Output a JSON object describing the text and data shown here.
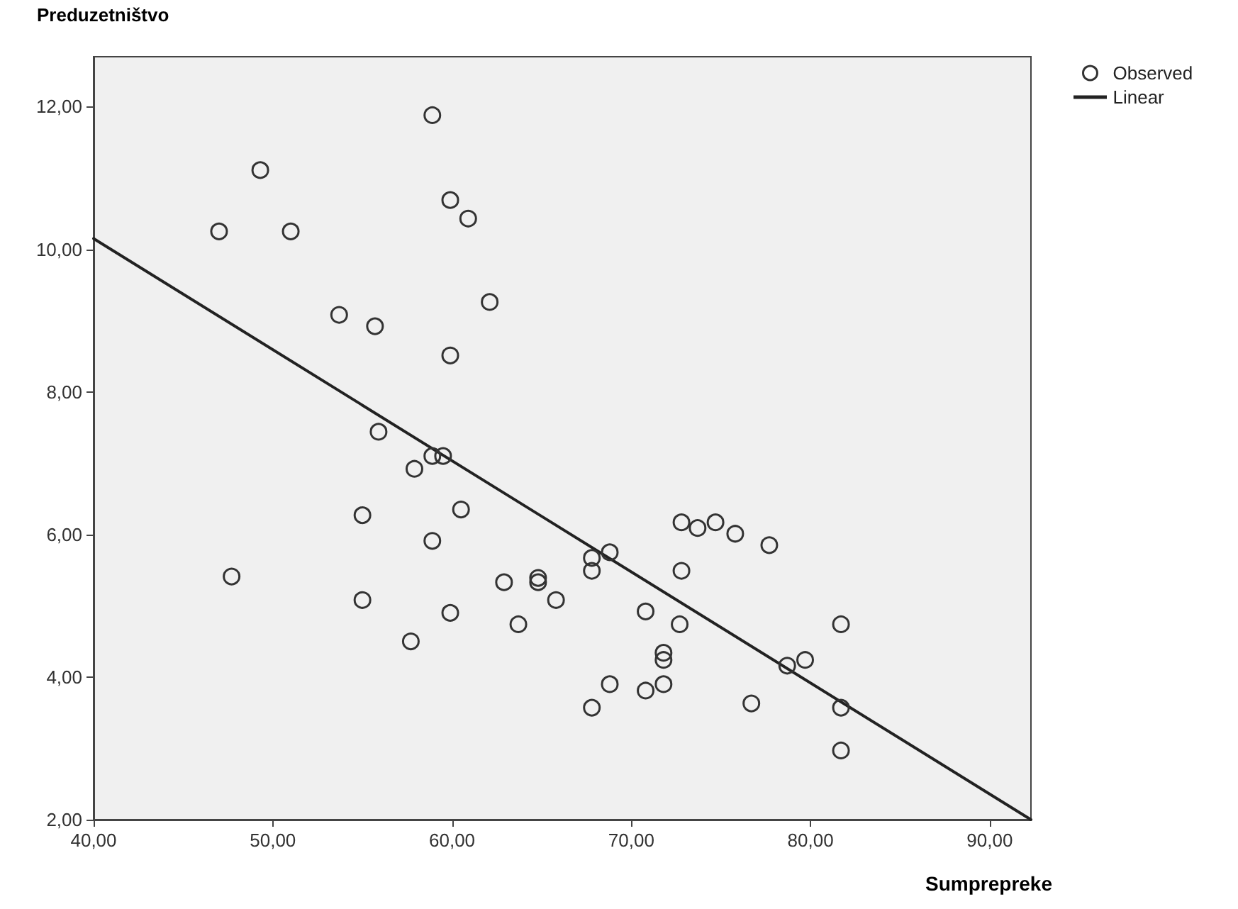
{
  "chart_data": {
    "type": "scatter",
    "xlabel": "Sumprepreke",
    "ylabel": "Preduzetništvo",
    "xlim": [
      40,
      92.3
    ],
    "ylim": [
      2,
      12.7
    ],
    "xticks": [
      {
        "value": 40,
        "label": "40,00"
      },
      {
        "value": 50,
        "label": "50,00"
      },
      {
        "value": 60,
        "label": "60,00"
      },
      {
        "value": 70,
        "label": "70,00"
      },
      {
        "value": 80,
        "label": "80,00"
      },
      {
        "value": 90,
        "label": "90,00"
      }
    ],
    "yticks": [
      {
        "value": 2,
        "label": "2,00"
      },
      {
        "value": 4,
        "label": "4,00"
      },
      {
        "value": 6,
        "label": "6,00"
      },
      {
        "value": 8,
        "label": "8,00"
      },
      {
        "value": 10,
        "label": "10,00"
      },
      {
        "value": 12,
        "label": "12,00"
      }
    ],
    "grid": false,
    "legend": "right",
    "marker": "circle",
    "series": [
      {
        "name": "Observed",
        "color": "#333333",
        "x": [
          49.3,
          47.0,
          51.0,
          58.9,
          59.9,
          60.9,
          62.1,
          53.7,
          55.7,
          59.9,
          55.9,
          58.9,
          59.5,
          57.9,
          55.0,
          60.5,
          58.9,
          47.7,
          55.0,
          59.9,
          57.7,
          62.9,
          64.8,
          64.8,
          65.8,
          63.7,
          67.8,
          67.8,
          68.8,
          67.8,
          68.8,
          70.8,
          71.8,
          71.8,
          70.8,
          71.8,
          72.8,
          73.7,
          74.7,
          75.8,
          77.7,
          72.8,
          72.7,
          76.7,
          78.7,
          79.7,
          81.7,
          81.7,
          81.7
        ],
        "values": [
          11.11,
          10.25,
          10.25,
          11.88,
          10.69,
          10.43,
          9.26,
          9.08,
          8.92,
          8.51,
          7.44,
          7.1,
          7.1,
          6.92,
          6.27,
          6.35,
          5.91,
          5.41,
          5.08,
          4.9,
          4.5,
          5.33,
          5.39,
          5.33,
          5.08,
          4.74,
          5.67,
          5.49,
          5.75,
          3.57,
          3.9,
          4.92,
          4.34,
          4.24,
          3.81,
          3.9,
          6.17,
          6.09,
          6.17,
          6.01,
          5.85,
          5.49,
          4.74,
          3.63,
          4.16,
          4.24,
          4.74,
          3.57,
          2.97
        ]
      },
      {
        "name": "Linear",
        "type": "line",
        "color": "#222222",
        "marker": "none",
        "line_style": "solid",
        "x": [
          40,
          92.3
        ],
        "values": [
          10.15,
          2.0
        ]
      }
    ]
  }
}
